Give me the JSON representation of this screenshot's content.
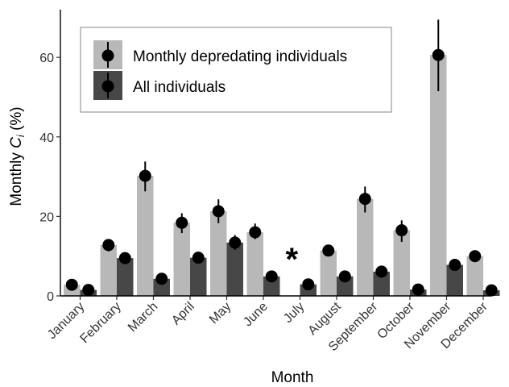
{
  "chart_data": {
    "type": "bar",
    "title": "",
    "xlabel": "Month",
    "ylabel_main": "Monthly ",
    "ylabel_sym": "C",
    "ylabel_sub": "i",
    "ylabel_unit": " (%)",
    "ylim": [
      0,
      72
    ],
    "yticks": [
      0,
      20,
      40,
      60
    ],
    "categories": [
      "January",
      "February",
      "March",
      "April",
      "May",
      "June",
      "July",
      "August",
      "September",
      "October",
      "November",
      "December"
    ],
    "series": [
      {
        "name": "Monthly depredating individuals",
        "color": "#b8b8b8",
        "values": [
          2.8,
          12.8,
          30.2,
          18.4,
          21.3,
          16.0,
          null,
          11.4,
          24.4,
          16.5,
          60.6,
          10.0
        ],
        "err_low": [
          2.3,
          11.2,
          26.3,
          15.8,
          18.3,
          14.3,
          null,
          10.6,
          21.0,
          13.6,
          51.5,
          9.3
        ],
        "err_high": [
          3.3,
          14.2,
          33.8,
          20.8,
          24.3,
          18.2,
          null,
          12.4,
          27.5,
          19.0,
          69.5,
          10.8
        ]
      },
      {
        "name": "All individuals",
        "color": "#474747",
        "values": [
          1.5,
          9.5,
          4.3,
          9.6,
          13.4,
          4.9,
          2.9,
          4.9,
          6.1,
          1.6,
          7.8,
          1.4
        ],
        "err_low": [
          1.1,
          8.7,
          3.8,
          8.8,
          11.6,
          4.3,
          2.5,
          4.4,
          5.5,
          1.2,
          7.0,
          1.0
        ],
        "err_high": [
          1.9,
          10.4,
          4.9,
          10.4,
          15.3,
          5.5,
          3.3,
          5.4,
          6.7,
          2.0,
          8.6,
          1.8
        ]
      }
    ],
    "annotations": [
      {
        "text": "*",
        "category": "July",
        "value": 10.5
      }
    ],
    "legend_position": "top-left",
    "grid": false
  }
}
